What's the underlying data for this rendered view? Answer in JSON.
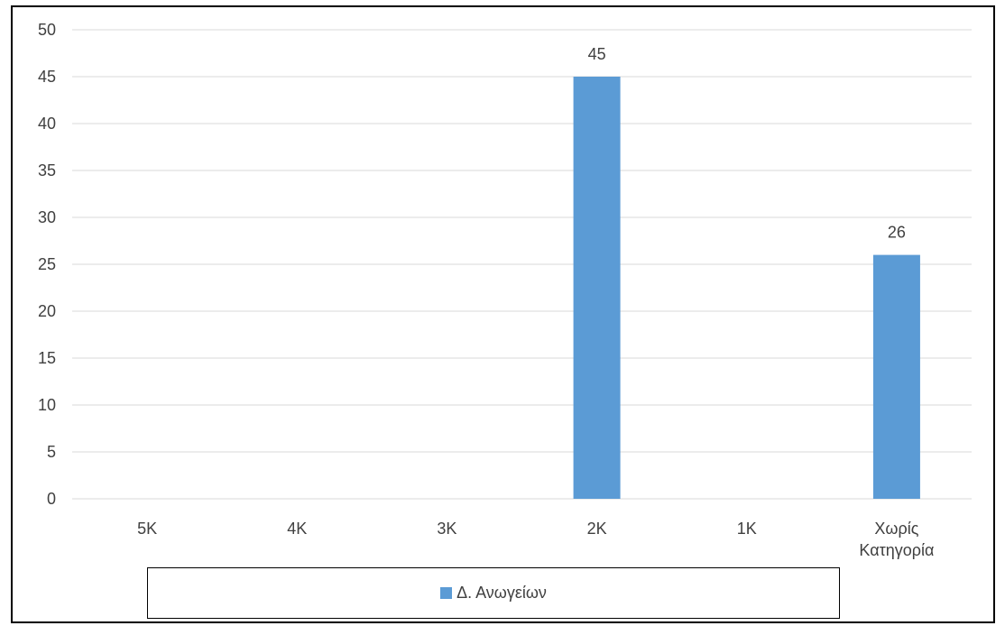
{
  "chart_data": {
    "type": "bar",
    "categories": [
      "5K",
      "4K",
      "3K",
      "2K",
      "1K",
      "Χωρίς Κατηγορία"
    ],
    "series": [
      {
        "name": "Δ. Ανωγείων",
        "values": [
          0,
          0,
          0,
          45,
          0,
          26
        ],
        "color": "#5B9BD5"
      }
    ],
    "data_labels": [
      "",
      "",
      "",
      "45",
      "",
      "26"
    ],
    "ylim": [
      0,
      50
    ],
    "yticks": [
      0,
      5,
      10,
      15,
      20,
      25,
      30,
      35,
      40,
      45,
      50
    ],
    "grid": true,
    "legend_position": "bottom"
  }
}
